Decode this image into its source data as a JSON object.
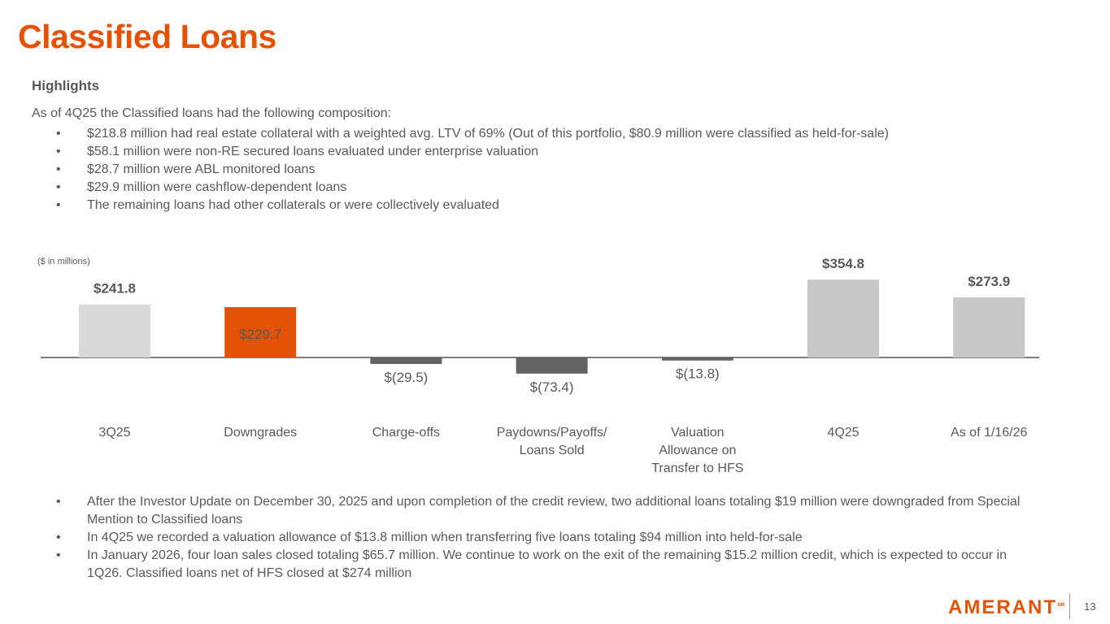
{
  "title": "Classified Loans",
  "highlights_heading": "Highlights",
  "intro": "As of 4Q25 the Classified loans had the following composition:",
  "top_bullets": [
    "$218.8 million had real estate collateral with a weighted avg. LTV of 69% (Out of this portfolio, $80.9 million were classified as held-for-sale)",
    "$58.1 million were non-RE secured loans evaluated under enterprise valuation",
    "$28.7 million were ABL monitored loans",
    "$29.9 million were cashflow-dependent loans",
    "The remaining loans had other collaterals or were collectively evaluated"
  ],
  "bottom_bullets": [
    "After the Investor Update on December 30, 2025 and upon completion of the credit review, two additional loans totaling $19 million were downgraded from Special Mention to Classified loans",
    "In 4Q25 we recorded a valuation allowance of $13.8 million  when transferring five loans totaling $94 million into held-for-sale",
    "In January 2026, four loan sales closed totaling $65.7 million. We continue to work on the exit of the remaining $15.2  million credit, which is expected to occur in 1Q26. Classified loans net of HFS closed at $274 million"
  ],
  "footer": {
    "logo": "AMERANT",
    "logo_mark": "SM",
    "page_number": "13"
  },
  "chart_data": {
    "type": "bar",
    "units_note": "($ in millions)",
    "categories": [
      "3Q25",
      "Downgrades",
      "Charge-offs",
      "Paydowns/Payoffs/\nLoans Sold",
      "Valuation\nAllowance on\nTransfer to HFS",
      "4Q25",
      "As of 1/16/26"
    ],
    "values": [
      241.8,
      229.7,
      -29.5,
      -73.4,
      -13.8,
      354.8,
      273.9
    ],
    "labels": [
      "$241.8",
      "$229.7",
      "$(29.5)",
      "$(73.4)",
      "$(13.8)",
      "$354.8",
      "$273.9"
    ],
    "colors": [
      "#D9D9D9",
      "#E35205",
      "#636363",
      "#636363",
      "#636363",
      "#C8C8C8",
      "#C8C8C8"
    ],
    "axis_color": "#7F7F7F",
    "grid": false,
    "legend": "none"
  }
}
